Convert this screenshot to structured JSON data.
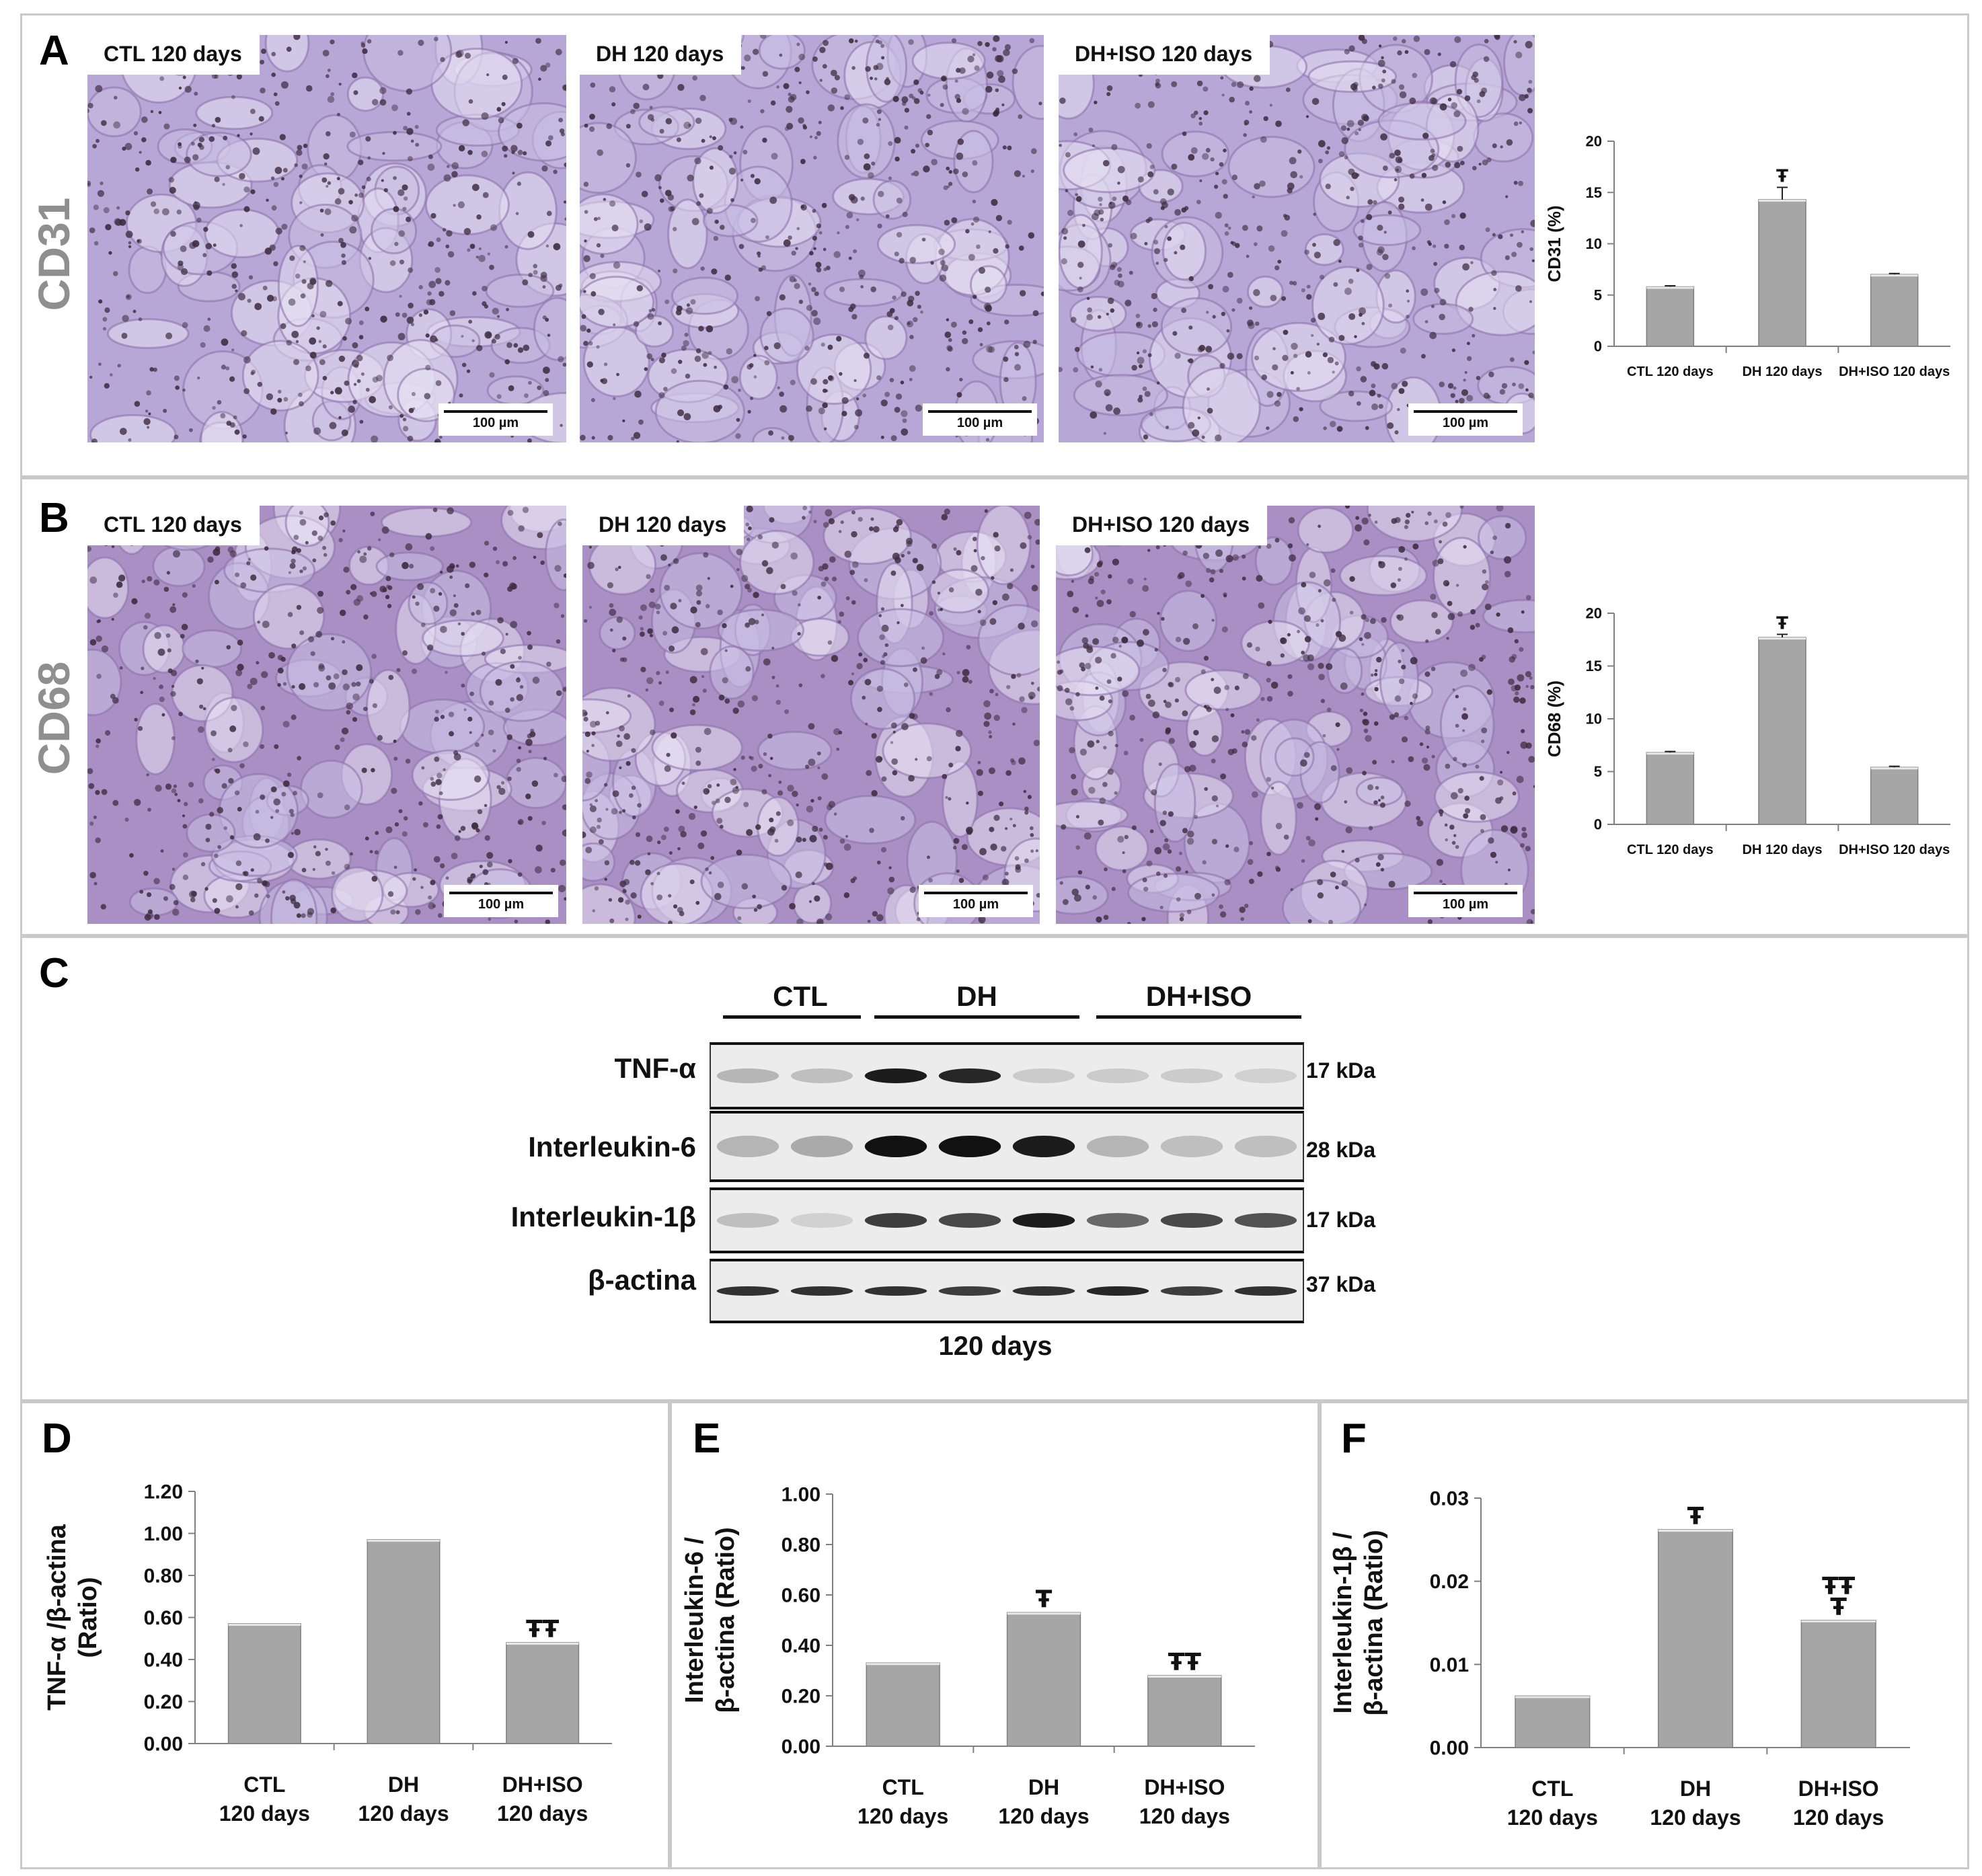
{
  "panels": {
    "A": {
      "letter": "A",
      "marker": "CD31",
      "images": [
        {
          "label": "CTL 120 days",
          "scale": "100 µm"
        },
        {
          "label": "DH 120 days",
          "scale": "100 µm"
        },
        {
          "label": "DH+ISO 120 days",
          "scale": "100 µm"
        }
      ]
    },
    "B": {
      "letter": "B",
      "marker": "CD68",
      "images": [
        {
          "label": "CTL 120 days",
          "scale": "100 µm"
        },
        {
          "label": "DH 120 days",
          "scale": "100 µm"
        },
        {
          "label": "DH+ISO 120 days",
          "scale": "100 µm"
        }
      ]
    },
    "C": {
      "letter": "C",
      "groups": [
        "CTL",
        "DH",
        "DH+ISO"
      ],
      "proteins": [
        {
          "name": "TNF-α",
          "kda": "17 kDa"
        },
        {
          "name": "Interleukin-6",
          "kda": "28 kDa"
        },
        {
          "name": "Interleukin-1β",
          "kda": "17 kDa"
        },
        {
          "name": "β-actina",
          "kda": "37 kDa"
        }
      ],
      "footer": "120 days"
    },
    "D": {
      "letter": "D"
    },
    "E": {
      "letter": "E"
    },
    "F": {
      "letter": "F"
    }
  },
  "colors": {
    "bar": "#a6a6a6",
    "bar_edge": "#7f7f7f",
    "tissue_cd31": "#b6a7d6",
    "tissue_cd68": "#a98fc4",
    "nuclei": "#3d2a3e"
  },
  "chart_data": [
    {
      "id": "A",
      "type": "bar",
      "categories": [
        "CTL  120 days",
        "DH 120 days",
        "DH+ISO 120 days"
      ],
      "values": [
        5.8,
        14.3,
        7.0
      ],
      "errors": [
        0.1,
        1.2,
        0.1
      ],
      "marks": [
        "",
        "Ŧ",
        ""
      ],
      "ylabel": "CD31  (%)",
      "ylim": [
        0,
        20
      ],
      "yticks": [
        "0",
        "5",
        "10",
        "15",
        "20"
      ]
    },
    {
      "id": "B",
      "type": "bar",
      "categories": [
        "CTL  120 days",
        "DH 120 days",
        "DH+ISO 120 days"
      ],
      "values": [
        6.8,
        17.7,
        5.4
      ],
      "errors": [
        0.1,
        0.3,
        0.1
      ],
      "marks": [
        "",
        "Ŧ",
        ""
      ],
      "ylabel": "CD68  (%)",
      "ylim": [
        0,
        20
      ],
      "yticks": [
        "0",
        "5",
        "10",
        "15",
        "20"
      ]
    },
    {
      "id": "D",
      "type": "bar",
      "categories": [
        [
          "CTL",
          "120 days"
        ],
        [
          "DH",
          "120 days"
        ],
        [
          "DH+ISO",
          "120 days"
        ]
      ],
      "values": [
        0.57,
        0.97,
        0.48
      ],
      "errors": [
        0,
        0,
        0
      ],
      "marks": [
        "",
        "",
        "ŦŦ"
      ],
      "ylabel": [
        "TNF-α /β-actina",
        "(Ratio)"
      ],
      "ylim": [
        0,
        1.2
      ],
      "yticks": [
        "0.00",
        "0.20",
        "0.40",
        "0.60",
        "0.80",
        "1.00",
        "1.20"
      ]
    },
    {
      "id": "E",
      "type": "bar",
      "categories": [
        [
          "CTL",
          "120 days"
        ],
        [
          "DH",
          "120 days"
        ],
        [
          "DH+ISO",
          "120 days"
        ]
      ],
      "values": [
        0.33,
        0.53,
        0.28
      ],
      "errors": [
        0,
        0,
        0
      ],
      "marks": [
        "",
        "Ŧ",
        "ŦŦ"
      ],
      "ylabel": [
        "Interleukin-6 /",
        "β-actina (Ratio)"
      ],
      "ylim": [
        0,
        1.0
      ],
      "yticks": [
        "0.00",
        "0.20",
        "0.40",
        "0.60",
        "0.80",
        "1.00"
      ]
    },
    {
      "id": "F",
      "type": "bar",
      "categories": [
        [
          "CTL",
          "120 days"
        ],
        [
          "DH",
          "120 days"
        ],
        [
          "DH+ISO",
          "120 days"
        ]
      ],
      "values": [
        0.0062,
        0.0262,
        0.0153
      ],
      "errors": [
        0,
        0,
        0
      ],
      "marks": [
        "",
        "Ŧ",
        "ŦŦ\nŦ"
      ],
      "ylabel": [
        "Interleukin-1β /",
        "β-actina (Ratio)"
      ],
      "ylim": [
        0,
        0.03
      ],
      "yticks": [
        "0.00",
        "0.01",
        "0.02",
        "0.03"
      ]
    }
  ]
}
